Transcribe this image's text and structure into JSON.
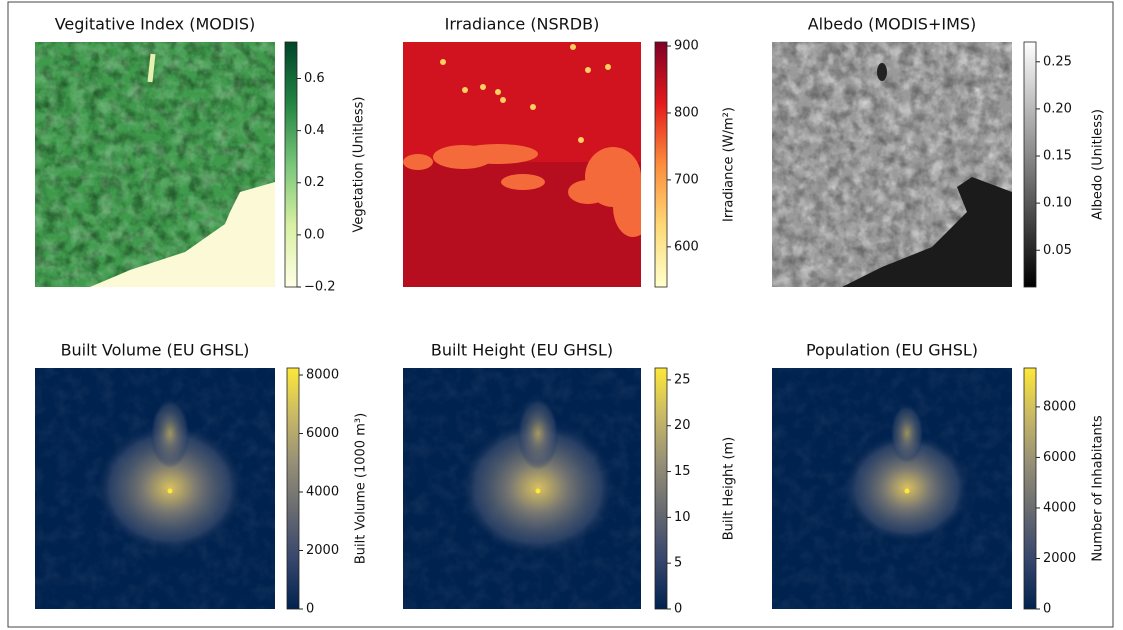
{
  "chart_data": [
    {
      "type": "heatmap",
      "title": "Vegitative Index (MODIS)",
      "colorbar_label": "Vegetation (Unitless)",
      "clim": [
        -0.2,
        0.74
      ],
      "cticks": [
        {
          "value": -0.2,
          "label": "−0.2"
        },
        {
          "value": 0,
          "label": "0.0"
        },
        0.2,
        0.4,
        0.6
      ],
      "colormap": [
        "#ffffe5",
        "#d9f0a3",
        "#78c679",
        "#238443",
        "#004529"
      ]
    },
    {
      "type": "heatmap",
      "title": "Irradiance (NSRDB)",
      "colorbar_label": "Irradiance (W/m²)",
      "clim": [
        540,
        906
      ],
      "cticks": [
        600,
        700,
        800,
        900
      ],
      "colormap": [
        "#ffffcc",
        "#fed976",
        "#fd8d3c",
        "#e31a1c",
        "#800026"
      ]
    },
    {
      "type": "heatmap",
      "title": "Albedo (MODIS+IMS)",
      "colorbar_label": "Albedo (Unitless)",
      "clim": [
        0.011,
        0.271
      ],
      "cticks": [
        0.05,
        {
          "value": 0.1,
          "label": "0.10"
        },
        0.15,
        {
          "value": 0.2,
          "label": "0.20"
        },
        0.25
      ],
      "colormap": [
        "#000000",
        "#ffffff"
      ]
    },
    {
      "type": "heatmap",
      "title": "Built Volume (EU GHSL)",
      "colorbar_label": "Built Volume (1000 m³)",
      "clim": [
        0,
        8240
      ],
      "cticks": [
        0,
        2000,
        4000,
        6000,
        8000
      ],
      "colormap": [
        "#00224e",
        "#35456c",
        "#666970",
        "#948e77",
        "#c8b866",
        "#fee838"
      ]
    },
    {
      "type": "heatmap",
      "title": "Built Height (EU GHSL)",
      "colorbar_label": "Built Height (m)",
      "clim": [
        0,
        26.3
      ],
      "cticks": [
        0,
        5,
        10,
        15,
        20,
        25
      ],
      "colormap": [
        "#00224e",
        "#35456c",
        "#666970",
        "#948e77",
        "#c8b866",
        "#fee838"
      ]
    },
    {
      "type": "heatmap",
      "title": "Population (EU GHSL)",
      "colorbar_label": "Number of Inhabitants",
      "clim": [
        0,
        9540
      ],
      "cticks": [
        0,
        2000,
        4000,
        6000,
        8000
      ],
      "colormap": [
        "#00224e",
        "#35456c",
        "#666970",
        "#948e77",
        "#c8b866",
        "#fee838"
      ]
    }
  ]
}
